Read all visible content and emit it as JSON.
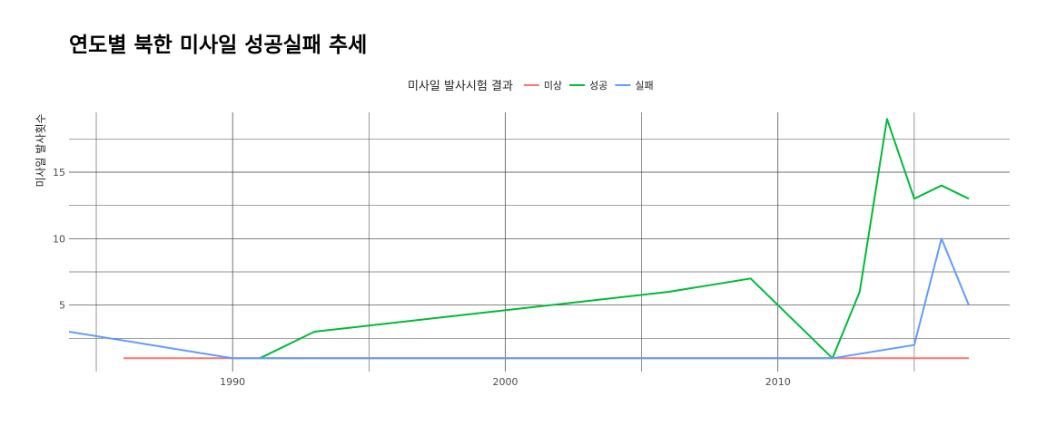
{
  "chart_data": {
    "type": "line",
    "title": "연도별 북한 미사일 성공실패 추세",
    "xlabel": "",
    "ylabel": "미사일 발사횟수",
    "xlim": [
      1984,
      2018.5
    ],
    "ylim": [
      0,
      19.5
    ],
    "x_ticks": [
      1990,
      2000,
      2010
    ],
    "y_ticks": [
      5,
      10,
      15
    ],
    "x_gridlines": [
      1985,
      1990,
      1995,
      2000,
      2005,
      2010,
      2015
    ],
    "y_gridlines": [
      2.5,
      5,
      7.5,
      10,
      12.5,
      15,
      17.5
    ],
    "grid": true,
    "legend": {
      "title": "미사일 발사시험 결과",
      "position": "top"
    },
    "series": [
      {
        "name": "미상",
        "color": "#F8766D",
        "x": [
          1986,
          2017
        ],
        "y": [
          1,
          1
        ]
      },
      {
        "name": "성공",
        "color": "#00BA38",
        "x": [
          1991,
          1993,
          2006,
          2009,
          2012,
          2013,
          2014,
          2015,
          2016,
          2017
        ],
        "y": [
          1,
          3,
          6,
          7,
          1,
          6,
          19,
          13,
          14,
          13
        ]
      },
      {
        "name": "실패",
        "color": "#619CFF",
        "x": [
          1984,
          1990,
          2012,
          2015,
          2016,
          2017
        ],
        "y": [
          3,
          1,
          1,
          2,
          10,
          5
        ]
      }
    ]
  }
}
